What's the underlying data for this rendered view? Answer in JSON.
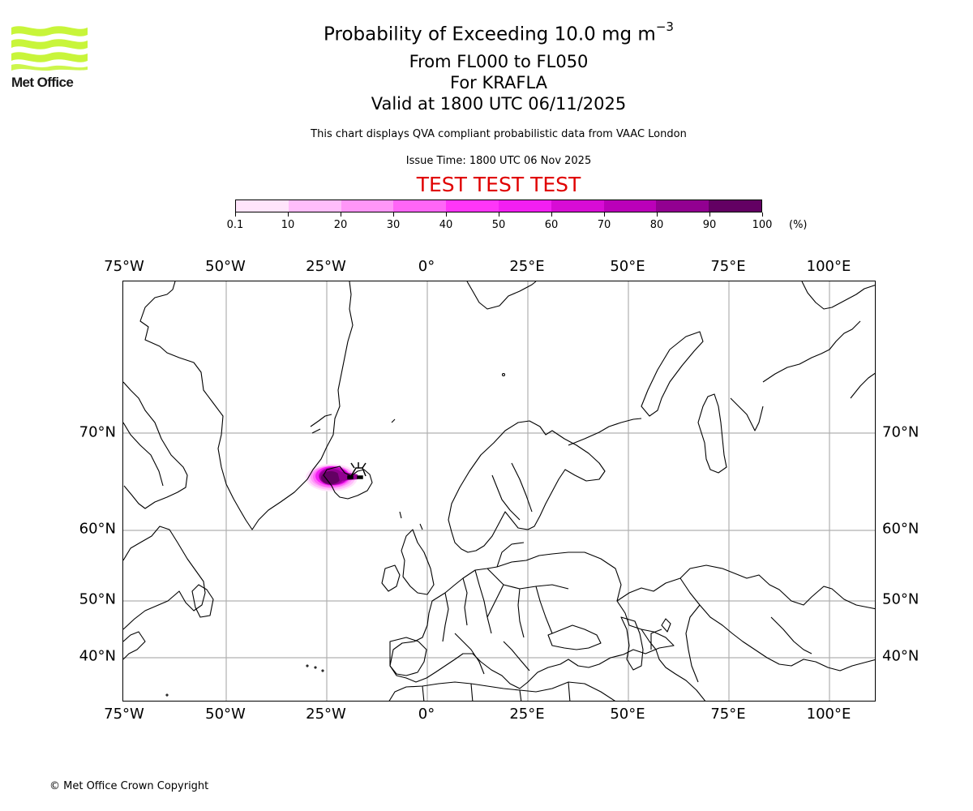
{
  "logo": {
    "text": "Met Office",
    "icon": "met-office-waves-icon",
    "color": "#c8f53a"
  },
  "header": {
    "title_main": "Probability of Exceeding 10.0 mg m",
    "title_superscript": "−3",
    "level_range": "From FL000 to FL050",
    "volcano": "For KRAFLA",
    "valid_time": "Valid at 1800 UTC 06/11/2025",
    "description": "This chart displays QVA compliant probabilistic data from VAAC London",
    "issue_time": "Issue Time: 1800 UTC 06 Nov 2025",
    "test_banner": "TEST TEST TEST",
    "test_banner_color": "#e00000"
  },
  "colorbar": {
    "unit": "(%)",
    "ticks": [
      "0.1",
      "10",
      "20",
      "30",
      "40",
      "50",
      "60",
      "70",
      "80",
      "90",
      "100"
    ],
    "colors": [
      "#ffe4fb",
      "#ffbdfb",
      "#ff96f8",
      "#ff66f7",
      "#ff36f8",
      "#f31ff2",
      "#d80cd5",
      "#bb00b9",
      "#920091",
      "#630063"
    ]
  },
  "axes": {
    "lon_labels": [
      "75°W",
      "50°W",
      "25°W",
      "0°",
      "25°E",
      "50°E",
      "75°E",
      "100°E"
    ],
    "lat_labels": [
      "70°N",
      "60°N",
      "50°N",
      "40°N"
    ]
  },
  "chart_data": {
    "type": "heatmap",
    "title": "Probability of Exceeding 10.0 mg m−3",
    "subtitle": "From FL000 to FL050 — For KRAFLA — Valid at 1800 UTC 06/11/2025",
    "projection": "Plate Carree",
    "extent": {
      "lon_min": -75,
      "lon_max": 112,
      "lat_min": 34,
      "lat_max": 83
    },
    "x_ticks": [
      -75,
      -50,
      -25,
      0,
      25,
      50,
      75,
      100
    ],
    "y_ticks": [
      70,
      60,
      50,
      40
    ],
    "grid": true,
    "legend": {
      "position": "top",
      "type": "colorbar",
      "label": "(%)",
      "bounds": [
        0.1,
        10,
        20,
        30,
        40,
        50,
        60,
        70,
        80,
        90,
        100
      ]
    },
    "features": [
      {
        "name": "Ash probability plume",
        "location": "West/central Iceland and adjacent sea",
        "lon_range": [
          -30,
          -17
        ],
        "lat_range": [
          63.5,
          66.7
        ],
        "max_probability_band": "90-100",
        "core_centre": {
          "lon": -24,
          "lat": 65
        }
      },
      {
        "name": "Volcano marker (Krafla)",
        "lon": -16.8,
        "lat": 65.7
      }
    ]
  },
  "footer": {
    "copyright": "© Met Office Crown Copyright"
  }
}
